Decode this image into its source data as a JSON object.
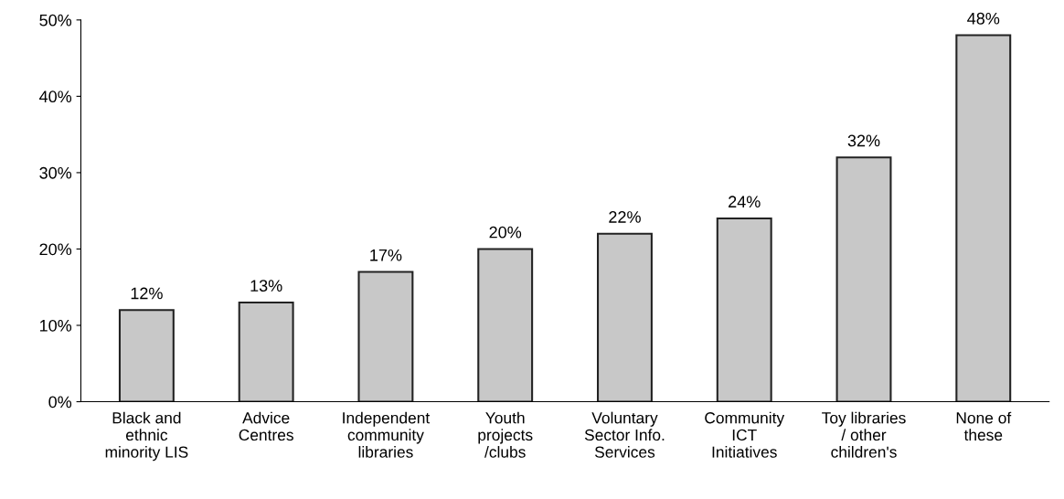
{
  "chart_data": {
    "type": "bar",
    "categories": [
      "Black and\nethnic\nminority LIS",
      "Advice\nCentres",
      "Independent\ncommunity\nlibraries",
      "Youth\nprojects\n/clubs",
      "Voluntary\nSector Info.\nServices",
      "Community\nICT\nInitiatives",
      "Toy libraries\n/ other\nchildren's",
      "None of\nthese"
    ],
    "values": [
      12,
      13,
      17,
      20,
      22,
      24,
      32,
      48
    ],
    "value_labels": [
      "12%",
      "13%",
      "17%",
      "20%",
      "22%",
      "24%",
      "32%",
      "48%"
    ],
    "color": "#c8c8c8",
    "ylim": [
      0,
      50
    ],
    "yticks": [
      {
        "value": 0,
        "label": "0%"
      },
      {
        "value": 10,
        "label": "10%"
      },
      {
        "value": 20,
        "label": "20%"
      },
      {
        "value": 30,
        "label": "30%"
      },
      {
        "value": 40,
        "label": "40%"
      },
      {
        "value": 50,
        "label": "50%"
      }
    ],
    "grid": false
  }
}
